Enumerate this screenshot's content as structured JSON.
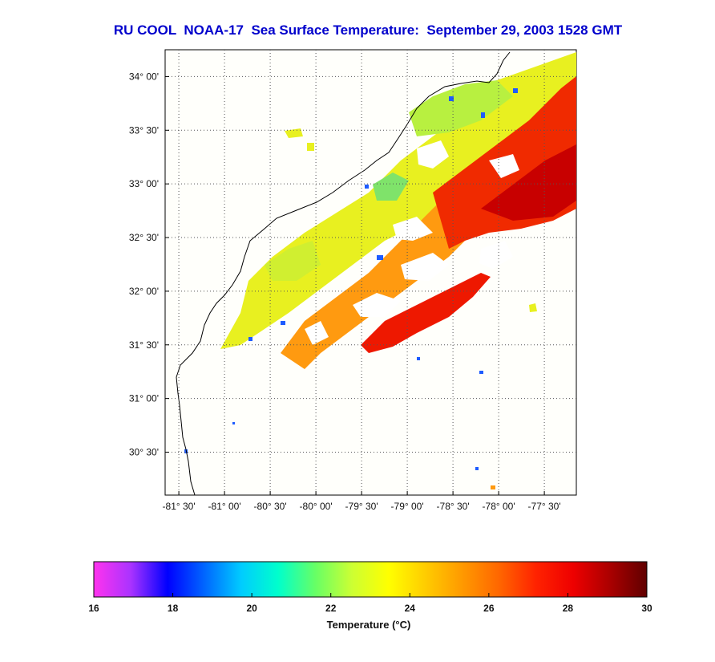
{
  "title": "RU COOL  NOAA-17  Sea Surface Temperature:  September 29, 2003 1528 GMT",
  "map": {
    "lat_ticks": [
      {
        "value": 34.0,
        "label": "34° 00'"
      },
      {
        "value": 33.5,
        "label": "33° 30'"
      },
      {
        "value": 33.0,
        "label": "33° 00'"
      },
      {
        "value": 32.5,
        "label": "32° 30'"
      },
      {
        "value": 32.0,
        "label": "32° 00'"
      },
      {
        "value": 31.5,
        "label": "31° 30'"
      },
      {
        "value": 31.0,
        "label": "31° 00'"
      },
      {
        "value": 30.5,
        "label": "30° 30'"
      }
    ],
    "lon_ticks": [
      {
        "value": -81.5,
        "label": "-81° 30'"
      },
      {
        "value": -81.0,
        "label": "-81° 00'"
      },
      {
        "value": -80.5,
        "label": "-80° 30'"
      },
      {
        "value": -80.0,
        "label": "-80° 00'"
      },
      {
        "value": -79.5,
        "label": "-79° 30'"
      },
      {
        "value": -79.0,
        "label": "-79° 00'"
      },
      {
        "value": -78.5,
        "label": "-78° 30'"
      },
      {
        "value": -78.0,
        "label": "-78° 00'"
      },
      {
        "value": -77.5,
        "label": "-77° 30'"
      }
    ],
    "lat_range": [
      30.1,
      34.25
    ],
    "lon_range": [
      -81.65,
      -77.15
    ],
    "grid": true
  },
  "colorbar": {
    "tick_labels": [
      "16",
      "18",
      "20",
      "22",
      "24",
      "26",
      "28",
      "30"
    ],
    "range": [
      16,
      30
    ],
    "label": "Temperature (°C)",
    "colors": [
      "#ff33ee",
      "#aa33ff",
      "#0000ff",
      "#0066ff",
      "#00ccff",
      "#00ffcc",
      "#66ff66",
      "#ccff33",
      "#ffff00",
      "#ffcc00",
      "#ff9900",
      "#ff6600",
      "#ff2200",
      "#ee0000",
      "#aa0000",
      "#600000"
    ]
  }
}
